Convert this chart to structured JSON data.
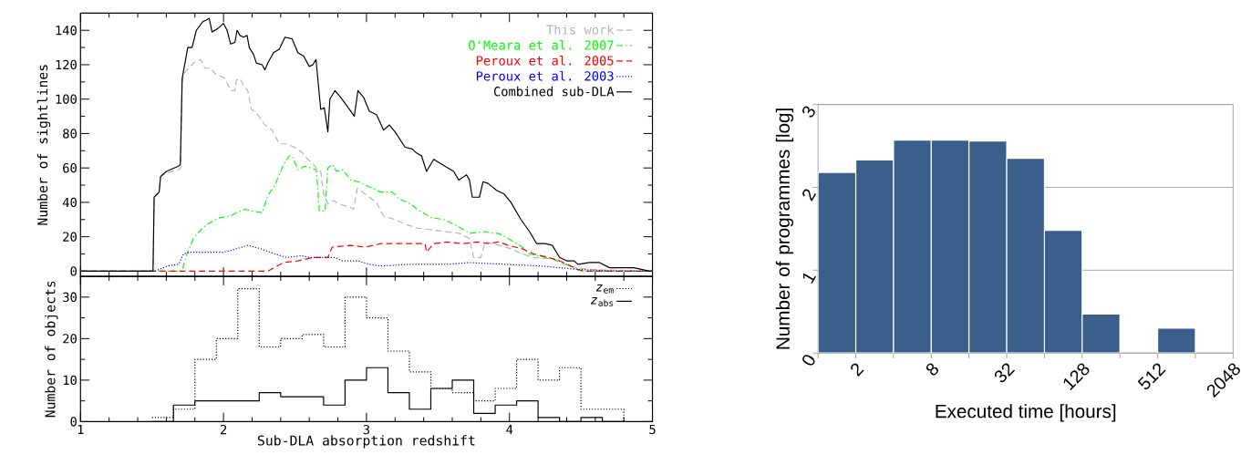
{
  "chart_data": [
    {
      "type": "line",
      "ylabel": "Number of sightlines",
      "xlim": [
        1,
        5
      ],
      "ylim": [
        -3,
        150
      ],
      "xticks": [
        1,
        2,
        3,
        4,
        5
      ],
      "yticks": [
        0,
        20,
        40,
        60,
        80,
        100,
        120,
        140
      ],
      "tick_labels": "y",
      "legend": "top right",
      "grid": false,
      "series": [
        {
          "name": "This work",
          "color": "#b4b4b4",
          "line_style": "dashed",
          "x": [
            1,
            1.507,
            1.515,
            1.55,
            1.56,
            1.6,
            1.685,
            1.7,
            1.711,
            1.724,
            1.79,
            1.84,
            1.87,
            1.91,
            1.95,
            1.99,
            2.01,
            2.05,
            2.08,
            2.09,
            2.115,
            2.14,
            2.17,
            2.195,
            2.23,
            2.29,
            2.34,
            2.39,
            2.44,
            2.495,
            2.55,
            2.59,
            2.63,
            2.65,
            2.68,
            2.7,
            2.73,
            2.77,
            2.81,
            2.89,
            2.91,
            2.935,
            2.955,
            3.02,
            3.07,
            3.12,
            3.2,
            3.28,
            3.36,
            3.65,
            3.72,
            3.75,
            3.8,
            3.83,
            3.93,
            4.01,
            4.09,
            4.17,
            4.3,
            4.38,
            4.46,
            4.56,
            5
          ],
          "values": [
            0,
            0,
            43,
            46,
            55,
            57,
            59,
            60,
            110,
            115,
            121,
            123,
            118,
            118,
            114,
            113,
            112,
            105,
            105,
            111,
            112,
            108,
            105,
            94,
            92,
            85,
            82,
            74,
            74,
            72,
            69,
            65,
            62,
            60,
            58,
            45,
            39,
            41,
            39,
            37,
            36,
            48,
            47,
            43,
            40,
            32,
            30,
            27,
            25,
            22,
            19,
            8,
            8,
            17,
            15,
            13,
            10,
            8,
            7,
            4,
            2,
            1,
            0
          ]
        },
        {
          "name": "O'Meara et al. 2007",
          "color": "#00ff00",
          "line_style": "dashdot",
          "x": [
            1,
            1.71,
            1.74,
            1.79,
            1.83,
            1.88,
            1.97,
            2.05,
            2.09,
            2.15,
            2.2,
            2.27,
            2.31,
            2.36,
            2.42,
            2.46,
            2.48,
            2.52,
            2.57,
            2.65,
            2.67,
            2.71,
            2.73,
            2.76,
            2.79,
            2.835,
            2.89,
            2.94,
            3.02,
            3.1,
            3.18,
            3.23,
            3.31,
            3.37,
            3.46,
            3.54,
            3.62,
            3.72,
            3.83,
            3.88,
            3.92,
            3.99,
            4.09,
            4.14,
            4.25,
            4.35,
            4.4,
            4.46,
            4.51,
            5
          ],
          "values": [
            0,
            0,
            9,
            19,
            23,
            27,
            31,
            32,
            34,
            36,
            35,
            34,
            44,
            50,
            62,
            67,
            67,
            59,
            61,
            59,
            35,
            35,
            60,
            62,
            58,
            59,
            53,
            52,
            49,
            46,
            46,
            42,
            39,
            35,
            31,
            30,
            27,
            22,
            23,
            22,
            22,
            19,
            14,
            10,
            8,
            6,
            4,
            1,
            0,
            0
          ]
        },
        {
          "name": "Peroux et al. 2005",
          "color": "#ff0000",
          "line_style": "dashed",
          "x": [
            1,
            2.31,
            2.42,
            2.52,
            2.63,
            2.73,
            2.76,
            2.89,
            2.99,
            3.1,
            3.31,
            3.41,
            3.42,
            3.47,
            3.57,
            3.67,
            3.78,
            3.85,
            3.93,
            3.99,
            4.09,
            4.17,
            4.27,
            4.35,
            4.43,
            4.48,
            4.53,
            5
          ],
          "values": [
            0,
            0,
            5,
            6,
            8,
            8,
            14,
            15,
            14,
            16,
            16,
            16,
            11,
            16,
            17,
            16,
            17,
            16,
            17,
            15,
            13,
            10,
            8,
            6,
            3,
            1,
            0,
            0
          ]
        },
        {
          "name": "Peroux et al. 2003",
          "color": "#0000ff",
          "line_style": "dotted",
          "x": [
            1,
            1.52,
            1.61,
            1.685,
            1.72,
            1.76,
            2.0,
            2.05,
            2.17,
            2.26,
            2.36,
            2.44,
            2.55,
            2.6,
            2.78,
            2.83,
            2.94,
            3.02,
            3.1,
            3.31,
            3.57,
            3.72,
            3.96,
            4.22,
            4.48,
            4.74,
            5
          ],
          "values": [
            0,
            0,
            3,
            4,
            10,
            11,
            11,
            12,
            15,
            13,
            10,
            8,
            9,
            8,
            8,
            6,
            6,
            4,
            3,
            4,
            4,
            5,
            4,
            3,
            1,
            0,
            0
          ]
        },
        {
          "name": "Combined sub-DLA",
          "color": "#000000",
          "line_style": "solid",
          "x": [
            1,
            1.507,
            1.515,
            1.55,
            1.56,
            1.6,
            1.685,
            1.698,
            1.711,
            1.75,
            1.78,
            1.81,
            1.855,
            1.88,
            1.9,
            1.92,
            1.96,
            2.0,
            2.025,
            2.05,
            2.08,
            2.095,
            2.115,
            2.14,
            2.165,
            2.18,
            2.21,
            2.23,
            2.27,
            2.29,
            2.31,
            2.35,
            2.39,
            2.43,
            2.48,
            2.52,
            2.56,
            2.6,
            2.625,
            2.647,
            2.68,
            2.705,
            2.73,
            2.744,
            2.78,
            2.82,
            2.89,
            2.915,
            2.94,
            2.98,
            3.02,
            3.07,
            3.12,
            3.16,
            3.2,
            3.27,
            3.32,
            3.345,
            3.385,
            3.42,
            3.47,
            3.51,
            3.57,
            3.61,
            3.645,
            3.7,
            3.72,
            3.74,
            3.79,
            3.815,
            3.85,
            3.91,
            3.96,
            4.01,
            4.08,
            4.14,
            4.19,
            4.25,
            4.3,
            4.35,
            4.4,
            4.45,
            4.48,
            4.56,
            4.63,
            4.7,
            4.87,
            4.98,
            5
          ],
          "values": [
            0,
            0,
            43,
            46,
            55,
            58,
            61,
            62,
            112,
            130,
            130,
            140,
            145,
            146,
            147,
            139,
            141,
            144,
            140,
            132,
            133,
            140,
            137,
            136,
            137,
            130,
            126,
            121,
            120,
            117,
            121,
            127,
            129,
            136,
            135,
            127,
            125,
            119,
            120,
            123,
            94,
            95,
            81,
            100,
            105,
            101,
            93,
            90,
            105,
            101,
            93,
            91,
            82,
            85,
            81,
            72,
            71,
            69,
            67,
            58,
            65,
            63,
            60,
            58,
            53,
            56,
            53,
            43,
            43,
            52,
            51,
            47,
            45,
            40,
            30,
            23,
            16,
            16,
            15,
            8,
            6,
            6,
            4,
            5,
            5,
            2,
            2,
            0,
            0
          ]
        }
      ]
    },
    {
      "type": "step",
      "xlabel": "Sub-DLA absorption redshift",
      "ylabel": "Number of objects",
      "xlim": [
        1,
        5
      ],
      "ylim": [
        0,
        35
      ],
      "xticks": [
        1,
        2,
        3,
        4,
        5
      ],
      "yticks": [
        0,
        10,
        20,
        30
      ],
      "legend": "top right",
      "grid": false,
      "series": [
        {
          "name": "*z*$_{em}$",
          "color": "#000000",
          "line_style": "dotted",
          "x": [
            1.5,
            1.65,
            1.8,
            1.95,
            2.1,
            2.25,
            2.4,
            2.55,
            2.7,
            2.85,
            3.0,
            3.15,
            3.3,
            3.45,
            3.6,
            3.75,
            3.9,
            4.05,
            4.2,
            4.35,
            4.5,
            4.65,
            4.8
          ],
          "values": [
            1,
            3,
            15,
            20,
            32,
            18,
            20,
            21,
            18,
            30,
            25,
            17,
            12,
            8,
            7,
            5,
            8,
            15,
            10,
            13,
            3,
            3,
            0
          ]
        },
        {
          "name": "*z*$_{abs}$",
          "color": "#000000",
          "line_style": "solid",
          "x": [
            1.5,
            1.65,
            1.8,
            1.95,
            2.1,
            2.25,
            2.4,
            2.55,
            2.7,
            2.85,
            3.0,
            3.15,
            3.3,
            3.45,
            3.6,
            3.75,
            3.9,
            4.05,
            4.2,
            4.35,
            4.5,
            4.65,
            4.8
          ],
          "values": [
            0,
            4,
            5,
            5,
            5,
            7,
            6,
            6,
            4,
            10,
            13,
            7,
            3,
            8,
            10,
            2,
            4,
            5,
            1,
            0,
            1,
            0,
            0
          ]
        }
      ]
    },
    {
      "type": "histogram",
      "xlabel": "Executed time [hours]",
      "ylabel": "Number of programmes [log]",
      "log": "x",
      "xlim": [
        1,
        2048
      ],
      "ylim": [
        0,
        3
      ],
      "grid": "y",
      "color": "#3a5f8a",
      "xticks": [
        {
          "value": 1,
          "label": null
        },
        2,
        {
          "value": 4,
          "label": null
        },
        8,
        {
          "value": 16,
          "label": null
        },
        32,
        {
          "value": 64,
          "label": null
        },
        128,
        {
          "value": 256,
          "label": null
        },
        512,
        {
          "value": 1024,
          "label": null
        },
        2048
      ],
      "yticks": [
        0,
        1,
        2,
        3
      ],
      "bins": [
        1,
        2,
        4,
        8,
        16,
        32,
        64,
        128,
        256,
        512,
        1024,
        2048
      ],
      "values": [
        2.18,
        2.33,
        2.57,
        2.57,
        2.56,
        2.35,
        1.48,
        0.47,
        0,
        0.3,
        0
      ]
    }
  ]
}
